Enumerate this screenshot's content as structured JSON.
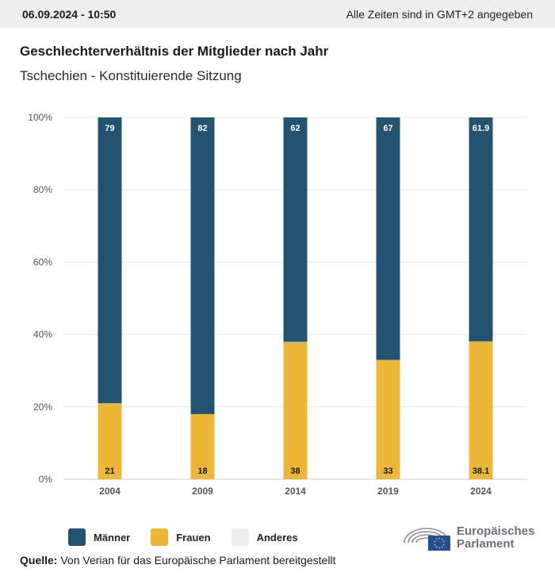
{
  "header": {
    "date": "06.09.2024 - 10:50",
    "timezone_note": "Alle Zeiten sind in GMT+2 angegeben"
  },
  "title": "Geschlechterverhältnis der Mitglieder nach Jahr",
  "subtitle": "Tschechien - Konstituierende Sitzung",
  "legend": [
    {
      "label": "Männer",
      "color": "#24536f"
    },
    {
      "label": "Frauen",
      "color": "#edb636"
    },
    {
      "label": "Anderes",
      "color": "#eeeef0"
    }
  ],
  "source": {
    "label": "Quelle:",
    "text": "Von Verian für das Europäische Parlament bereitgestellt"
  },
  "logo": {
    "line1": "Europäisches",
    "line2": "Parlament"
  },
  "chart_data": {
    "type": "bar",
    "stacked": true,
    "categories": [
      "2004",
      "2009",
      "2014",
      "2019",
      "2024"
    ],
    "series": [
      {
        "name": "Frauen",
        "color": "#edb636",
        "values": [
          21,
          18,
          38,
          33,
          38.1
        ],
        "labels": [
          "21",
          "18",
          "38",
          "33",
          "38.1"
        ]
      },
      {
        "name": "Männer",
        "color": "#24536f",
        "values": [
          79,
          82,
          62,
          67,
          61.9
        ],
        "labels": [
          "79",
          "82",
          "62",
          "67",
          "61.9"
        ]
      }
    ],
    "yticks": [
      "0%",
      "20%",
      "40%",
      "60%",
      "80%",
      "100%"
    ],
    "ylim": [
      0,
      100
    ],
    "grid": true,
    "legend_position": "bottom"
  }
}
